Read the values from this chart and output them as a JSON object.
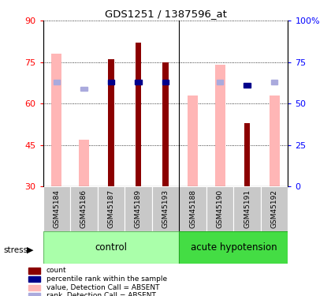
{
  "title": "GDS1251 / 1387596_at",
  "samples": [
    "GSM45184",
    "GSM45186",
    "GSM45187",
    "GSM45189",
    "GSM45193",
    "GSM45188",
    "GSM45190",
    "GSM45191",
    "GSM45192"
  ],
  "value_absent": [
    78,
    47,
    null,
    null,
    null,
    63,
    74,
    null,
    63
  ],
  "rank_absent_light": [
    63,
    null,
    null,
    null,
    null,
    null,
    63,
    null,
    null
  ],
  "count_red": [
    null,
    null,
    76,
    82,
    75,
    null,
    null,
    53,
    null
  ],
  "rank_blue_solid": [
    null,
    null,
    63,
    63,
    63,
    null,
    null,
    61,
    null
  ],
  "rank_blue_light": [
    63,
    59,
    null,
    null,
    null,
    null,
    63,
    null,
    63
  ],
  "ylim_left": [
    30,
    90
  ],
  "ylim_right": [
    0,
    100
  ],
  "yticks_left": [
    30,
    45,
    60,
    75,
    90
  ],
  "yticks_right": [
    0,
    25,
    50,
    75,
    100
  ],
  "ytick_right_labels": [
    "0",
    "25",
    "50",
    "75",
    "100%"
  ],
  "color_red_bar": "#8B0000",
  "color_pink_bar": "#FFB6B6",
  "color_blue_solid": "#00008B",
  "color_blue_light": "#AAAADD",
  "color_control_bg": "#AAFFAA",
  "color_acute_bg": "#44DD44",
  "color_gray_cell": "#C8C8C8",
  "label_stress": "stress",
  "label_control": "control",
  "label_acute": "acute hypotension",
  "legend_colors": [
    "#8B0000",
    "#00008B",
    "#FFB6B6",
    "#AAAADD"
  ],
  "legend_items": [
    "count",
    "percentile rank within the sample",
    "value, Detection Call = ABSENT",
    "rank, Detection Call = ABSENT"
  ],
  "n_control": 5,
  "n_total": 9
}
